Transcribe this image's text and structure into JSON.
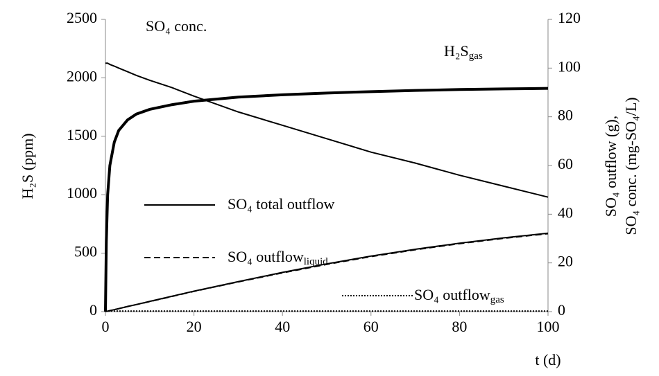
{
  "chart_data": {
    "type": "line",
    "x_label": "t (d)",
    "y_label": "H₂S (ppm)",
    "y2_label": [
      "SO₄ outflow (g),",
      "SO₄ conc. (mg-SO₄/L)"
    ],
    "x": [
      0,
      0.2,
      0.5,
      1,
      2,
      3,
      5,
      7,
      10,
      15,
      20,
      30,
      40,
      50,
      60,
      70,
      80,
      90,
      100
    ],
    "xlim": [
      0,
      100
    ],
    "xticks": [
      0,
      20,
      40,
      60,
      80,
      100
    ],
    "ylim": [
      0,
      2500
    ],
    "yticks": [
      0,
      500,
      1000,
      1500,
      2000,
      2500
    ],
    "y2lim": [
      0,
      120
    ],
    "y2ticks": [
      0,
      20,
      40,
      60,
      80,
      100,
      120
    ],
    "series": [
      {
        "name": "H₂S",
        "name_sub": "gas",
        "color": "#000000",
        "style": "thick",
        "values": [
          0,
          600,
          1000,
          1250,
          1450,
          1550,
          1640,
          1690,
          1730,
          1770,
          1800,
          1835,
          1855,
          1870,
          1882,
          1892,
          1900,
          1905,
          1910
        ]
      },
      {
        "name": "SO₄ conc.",
        "color": "#000000",
        "style": "solid",
        "axis": "y2",
        "values": [
          102,
          102,
          102,
          101.5,
          100.8,
          100,
          98.5,
          97,
          95,
          92,
          88.5,
          82,
          76.5,
          71,
          65.5,
          61,
          56,
          51.5,
          47
        ]
      },
      {
        "name": "SO₄ total outflow",
        "color": "#000000",
        "style": "solid",
        "axis": "y2",
        "values": [
          0,
          0.1,
          0.2,
          0.4,
          0.8,
          1.2,
          2.1,
          2.9,
          4.2,
          6.3,
          8.4,
          12.3,
          16.1,
          19.6,
          22.8,
          25.6,
          28.1,
          30.3,
          32.2
        ]
      },
      {
        "name": "SO₄ outflow",
        "name_sub": "liquid",
        "color": "#000000",
        "style": "dashed",
        "axis": "y2",
        "values": [
          0,
          0.1,
          0.2,
          0.4,
          0.8,
          1.2,
          2.1,
          2.9,
          4.1,
          6.2,
          8.3,
          12.2,
          15.9,
          19.4,
          22.6,
          25.4,
          27.9,
          30.1,
          32.0
        ]
      },
      {
        "name": "SO₄ outflow",
        "name_sub": "gas",
        "color": "#000000",
        "style": "dotted",
        "axis": "y2",
        "values": [
          0.2,
          0.2,
          0.2,
          0.2,
          0.2,
          0.2,
          0.2,
          0.2,
          0.2,
          0.2,
          0.2,
          0.2,
          0.2,
          0.2,
          0.2,
          0.2,
          0.2,
          0.2,
          0.2
        ]
      }
    ]
  }
}
